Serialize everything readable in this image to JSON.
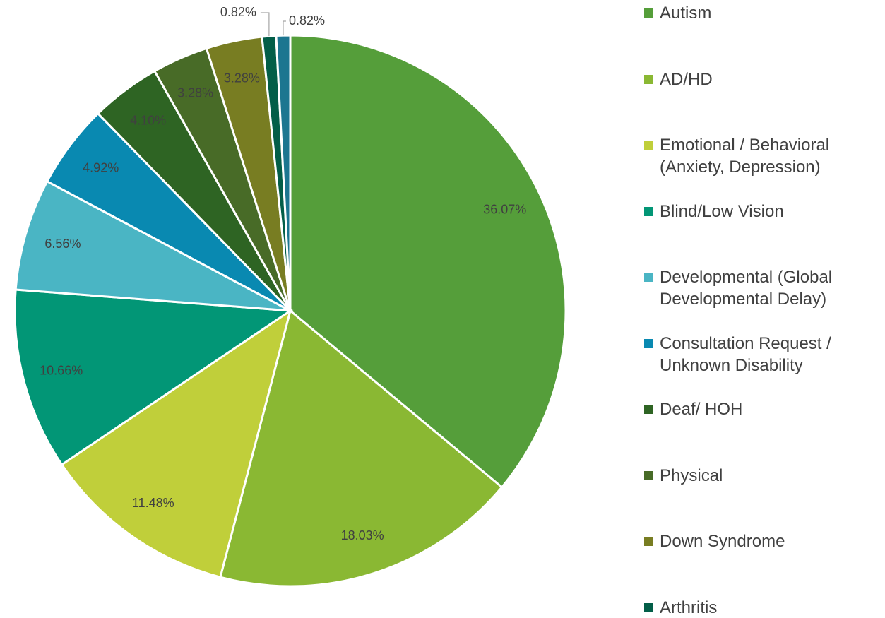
{
  "chart_data": {
    "type": "pie",
    "categories": [
      "Autism",
      "AD/HD",
      "Emotional / Behavioral (Anxiety, Depression)",
      "Blind/Low Vision",
      "Developmental (Global Developmental Delay)",
      "Consultation Request / Unknown Disability",
      "Deaf/ HOH",
      "Physical",
      "Down Syndrome",
      "Arthritis",
      null
    ],
    "values": [
      36.07,
      18.03,
      11.48,
      10.66,
      6.56,
      4.92,
      4.1,
      3.28,
      3.28,
      0.82,
      0.82
    ],
    "value_labels": [
      "36.07%",
      "18.03%",
      "11.48%",
      "10.66%",
      "6.56%",
      "4.92%",
      "4.10%",
      "3.28%",
      "3.28%",
      "0.82%",
      "0.82%"
    ],
    "colors": [
      "#559e3a",
      "#8ab833",
      "#c0cf3a",
      "#029676",
      "#4ab5c4",
      "#0989b1",
      "#2e6423",
      "#486b27",
      "#787d22",
      "#035e48",
      "#1c7690"
    ],
    "legend": "right"
  }
}
